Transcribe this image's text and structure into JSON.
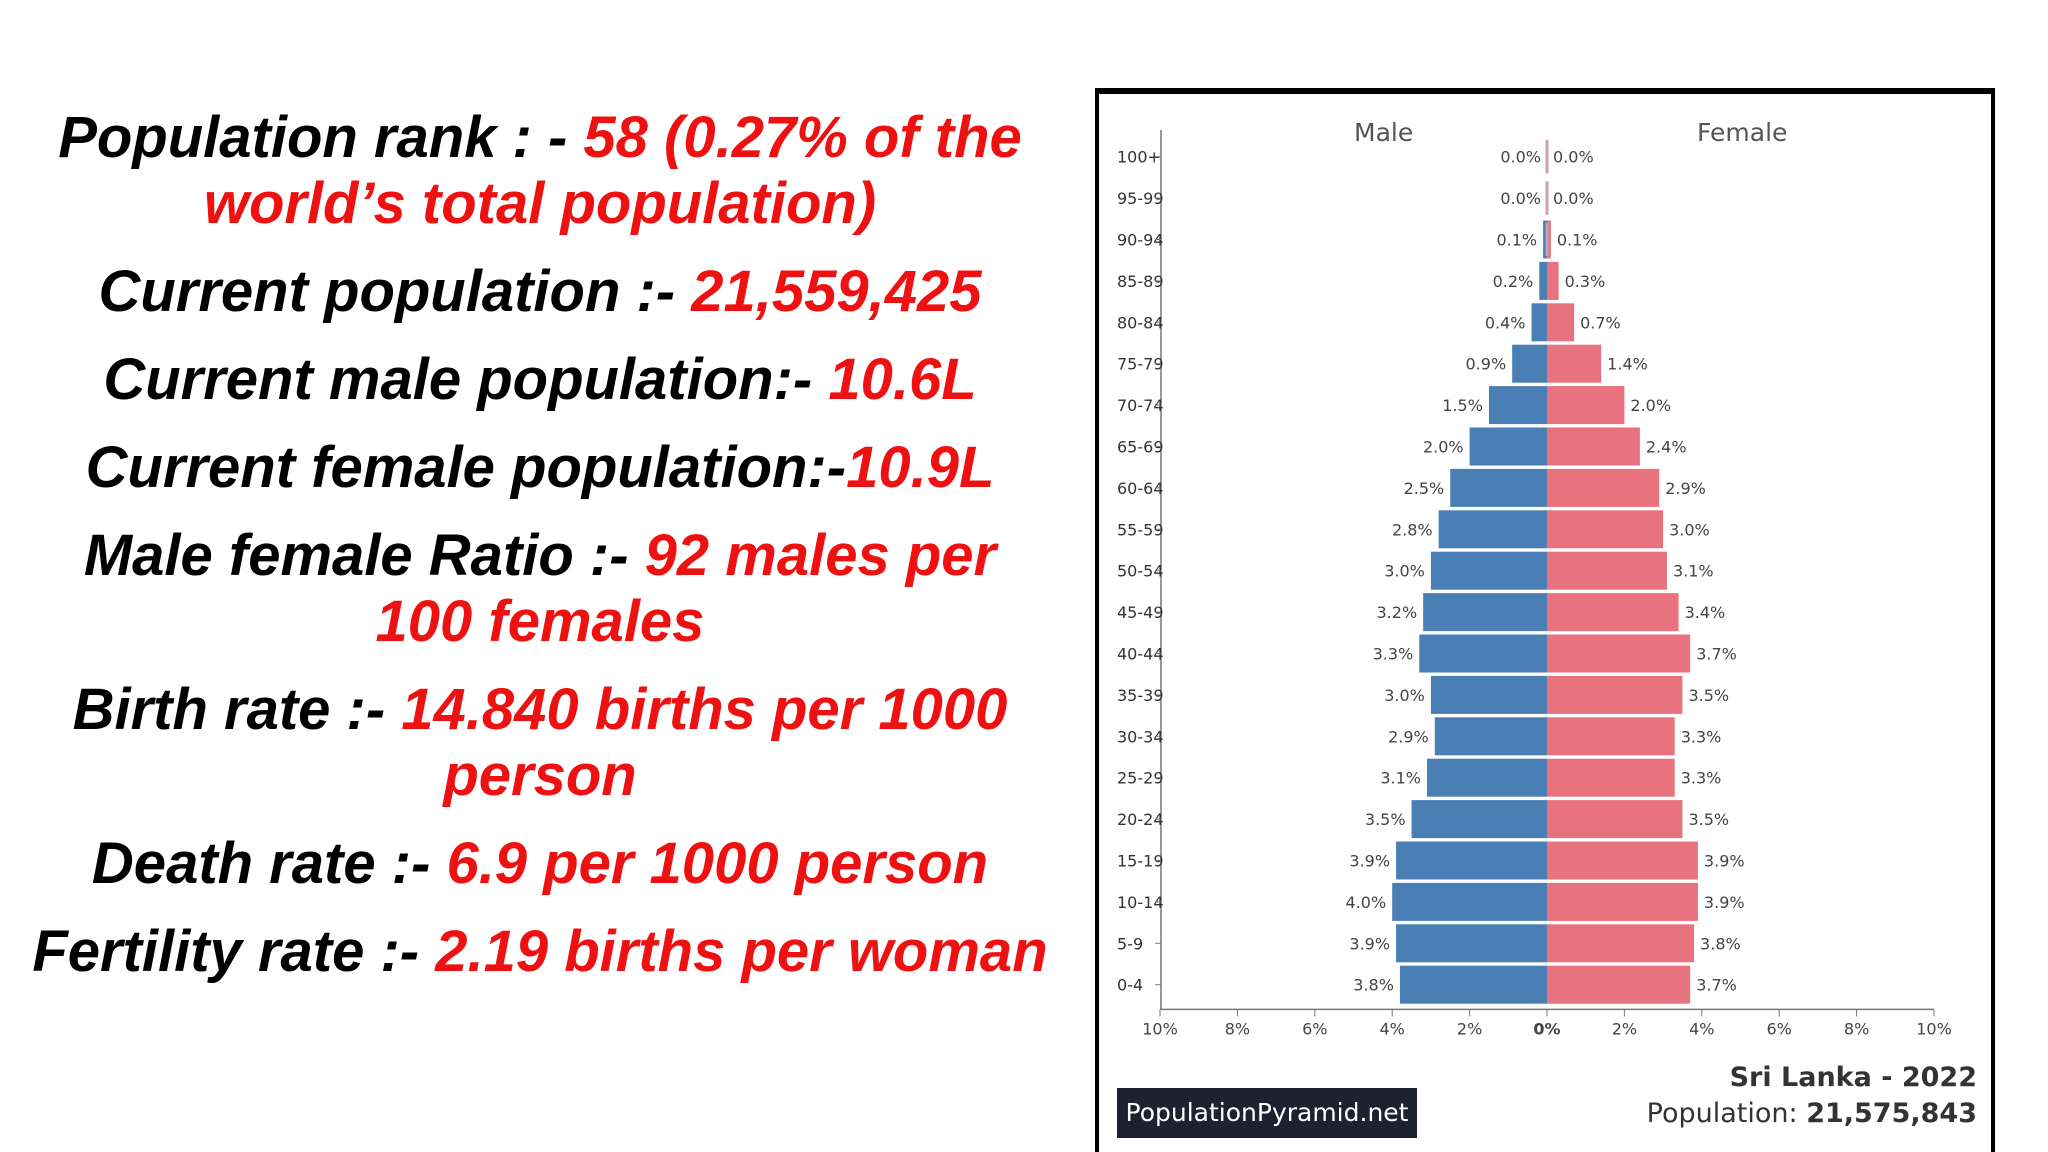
{
  "stats": [
    {
      "label": "Population rank : - ",
      "value": "58 (0.27% of the world’s total population)"
    },
    {
      "label": "Current population  :- ",
      "value": "21,559,425"
    },
    {
      "label": "Current male population:- ",
      "value": "10.6L"
    },
    {
      "label": "Current female population:-",
      "value": "10.9L"
    },
    {
      "label": "Male female Ratio :- ",
      "value": "92 males per 100 females"
    },
    {
      "label": "Birth rate :- ",
      "value": "14.840 births per 1000 person"
    },
    {
      "label": "Death rate :- ",
      "value": "6.9  per 1000 person"
    },
    {
      "label": "Fertility rate :- ",
      "value": "2.19 births per woman"
    }
  ],
  "chart_data": {
    "type": "bar",
    "orientation": "horizontal-pyramid",
    "title": "Sri Lanka - 2022",
    "population_label": "Population: ",
    "population_value": "21,575,843",
    "source_badge": "PopulationPyramid.net",
    "categories": [
      "100+",
      "95-99",
      "90-94",
      "85-89",
      "80-84",
      "75-79",
      "70-74",
      "65-69",
      "60-64",
      "55-59",
      "50-54",
      "45-49",
      "40-44",
      "35-39",
      "30-34",
      "25-29",
      "20-24",
      "15-19",
      "10-14",
      "5-9",
      "0-4"
    ],
    "series": [
      {
        "name": "Male",
        "color": "#4a7fb5",
        "values": [
          0.0,
          0.0,
          0.1,
          0.2,
          0.4,
          0.9,
          1.5,
          2.0,
          2.5,
          2.8,
          3.0,
          3.2,
          3.3,
          3.0,
          2.9,
          3.1,
          3.5,
          3.9,
          4.0,
          3.9,
          3.8
        ]
      },
      {
        "name": "Female",
        "color": "#e8737f",
        "values": [
          0.0,
          0.0,
          0.1,
          0.3,
          0.7,
          1.4,
          2.0,
          2.4,
          2.9,
          3.0,
          3.1,
          3.4,
          3.7,
          3.5,
          3.3,
          3.3,
          3.5,
          3.9,
          3.9,
          3.8,
          3.7
        ]
      }
    ],
    "xticks": [
      "10%",
      "8%",
      "6%",
      "4%",
      "2%",
      "0%",
      "2%",
      "4%",
      "6%",
      "8%",
      "10%"
    ],
    "xlim": [
      -10,
      10
    ],
    "grid": false
  }
}
